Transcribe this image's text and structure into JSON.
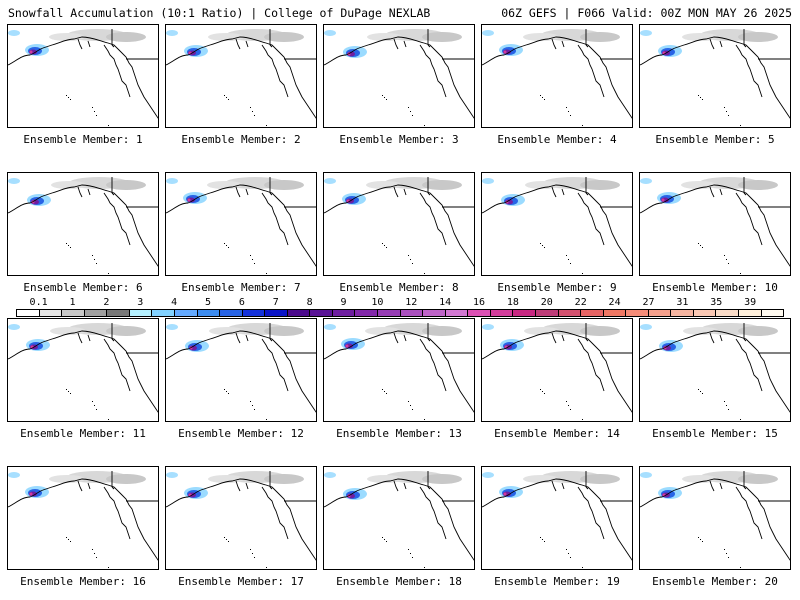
{
  "header": {
    "left": "Snowfall Accumulation (10:1 Ratio) | College of DuPage NEXLAB",
    "right": "06Z GEFS | F066 Valid: 00Z MON MAY 26 2025"
  },
  "panels": [
    {
      "label": "Ensemble Member: 1"
    },
    {
      "label": "Ensemble Member: 2"
    },
    {
      "label": "Ensemble Member: 3"
    },
    {
      "label": "Ensemble Member: 4"
    },
    {
      "label": "Ensemble Member: 5"
    },
    {
      "label": "Ensemble Member: 6"
    },
    {
      "label": "Ensemble Member: 7"
    },
    {
      "label": "Ensemble Member: 8"
    },
    {
      "label": "Ensemble Member: 9"
    },
    {
      "label": "Ensemble Member: 10"
    },
    {
      "label": "Ensemble Member: 11"
    },
    {
      "label": "Ensemble Member: 12"
    },
    {
      "label": "Ensemble Member: 13"
    },
    {
      "label": "Ensemble Member: 14"
    },
    {
      "label": "Ensemble Member: 15"
    },
    {
      "label": "Ensemble Member: 16"
    },
    {
      "label": "Ensemble Member: 17"
    },
    {
      "label": "Ensemble Member: 18"
    },
    {
      "label": "Ensemble Member: 19"
    },
    {
      "label": "Ensemble Member: 20"
    }
  ],
  "colorbar": {
    "ticks": [
      "0.1",
      "1",
      "2",
      "3",
      "4",
      "5",
      "6",
      "7",
      "8",
      "9",
      "10",
      "12",
      "14",
      "16",
      "18",
      "20",
      "22",
      "24",
      "27",
      "31",
      "35",
      "39"
    ],
    "colors": [
      "#ffffff",
      "#e6e6e6",
      "#c8c8c8",
      "#a0a0a0",
      "#787878",
      "#b4f0ff",
      "#82d2ff",
      "#64aaff",
      "#3c8cf0",
      "#2864e6",
      "#1432dc",
      "#0a14c8",
      "#4b0a8c",
      "#5a1496",
      "#6e1ea0",
      "#8228aa",
      "#963cb4",
      "#aa50be",
      "#be64c8",
      "#d278d2",
      "#dc50b4",
      "#d23c9b",
      "#c82882",
      "#be3c78",
      "#d2506e",
      "#e66464",
      "#f07864",
      "#f58c78",
      "#f5a08c",
      "#f5b4a0",
      "#fac8b4",
      "#fadcc8",
      "#fff0dc",
      "#fffaf0"
    ],
    "tick_every": 2
  }
}
